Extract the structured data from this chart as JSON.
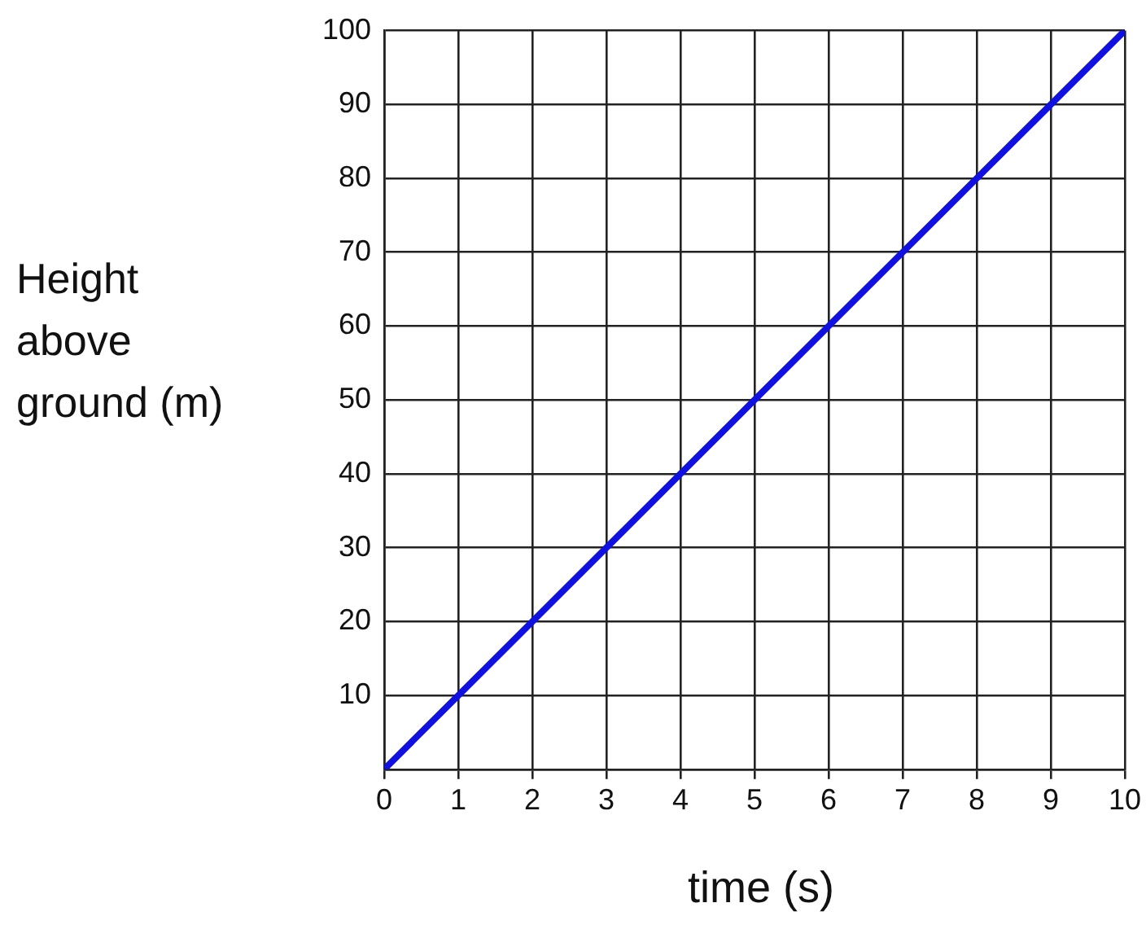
{
  "chart_data": {
    "type": "line",
    "xlabel": "time (s)",
    "ylabel": "Height above ground (m)",
    "x": [
      0,
      1,
      2,
      3,
      4,
      5,
      6,
      7,
      8,
      9,
      10
    ],
    "series": [
      {
        "color": "#1010e0",
        "values": [
          0,
          10,
          20,
          30,
          40,
          50,
          60,
          70,
          80,
          90,
          100
        ]
      }
    ],
    "xlim": [
      0,
      10
    ],
    "xticks": [
      0,
      1,
      2,
      3,
      4,
      5,
      6,
      7,
      8,
      9,
      10
    ],
    "ylim": [
      0,
      100
    ],
    "yticks": [
      {
        "value": 0,
        "label": null
      },
      10,
      20,
      30,
      40,
      50,
      60,
      70,
      80,
      90,
      100
    ],
    "grid": true,
    "legend": false,
    "marker": "none",
    "line_style": "solid"
  }
}
